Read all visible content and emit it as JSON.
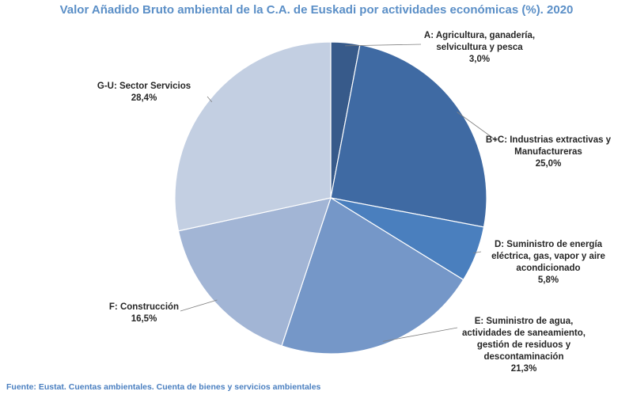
{
  "chart_data": {
    "type": "pie",
    "title": "Valor Añadido Bruto ambiental de la C.A. de Euskadi por actividades económicas (%). 2020",
    "slices": [
      {
        "name": "A: Agricultura, ganadería, selvicultura y pesca",
        "value": 3.0,
        "value_label": "3,0%",
        "color": "#375a8a",
        "label_lines": [
          "A: Agricultura, ganadería,",
          "selvicultura y pesca",
          "3,0%"
        ]
      },
      {
        "name": "B+C: Industrias extractivas y Manufactureras",
        "value": 25.0,
        "value_label": "25,0%",
        "color": "#3f6aa3",
        "label_lines": [
          "B+C: Industrias extractivas y",
          "Manufactureras",
          "25,0%"
        ]
      },
      {
        "name": "D: Suministro de energía eléctrica, gas, vapor y aire acondicionado",
        "value": 5.8,
        "value_label": "5,8%",
        "color": "#4a7fbe",
        "label_lines": [
          "D: Suministro de energía",
          "eléctrica, gas, vapor y aire",
          "acondicionado",
          "5,8%"
        ]
      },
      {
        "name": "E: Suministro de agua, actividades de saneamiento, gestión de residuos y descontaminación",
        "value": 21.3,
        "value_label": "21,3%",
        "color": "#7597c8",
        "label_lines": [
          "E: Suministro de agua,",
          "actividades de saneamiento,",
          "gestión de residuos y",
          "descontaminación",
          "21,3%"
        ]
      },
      {
        "name": "F: Construcción",
        "value": 16.5,
        "value_label": "16,5%",
        "color": "#a2b5d5",
        "label_lines": [
          "F: Construcción",
          "16,5%"
        ]
      },
      {
        "name": "G-U: Sector Servicios",
        "value": 28.4,
        "value_label": "28,4%",
        "color": "#c3cfe2",
        "label_lines": [
          "G-U: Sector Servicios",
          "28,4%"
        ]
      }
    ],
    "legend": "none"
  },
  "source_note": "Fuente: Eustat. Cuentas ambientales. Cuenta de bienes y servicios ambientales"
}
